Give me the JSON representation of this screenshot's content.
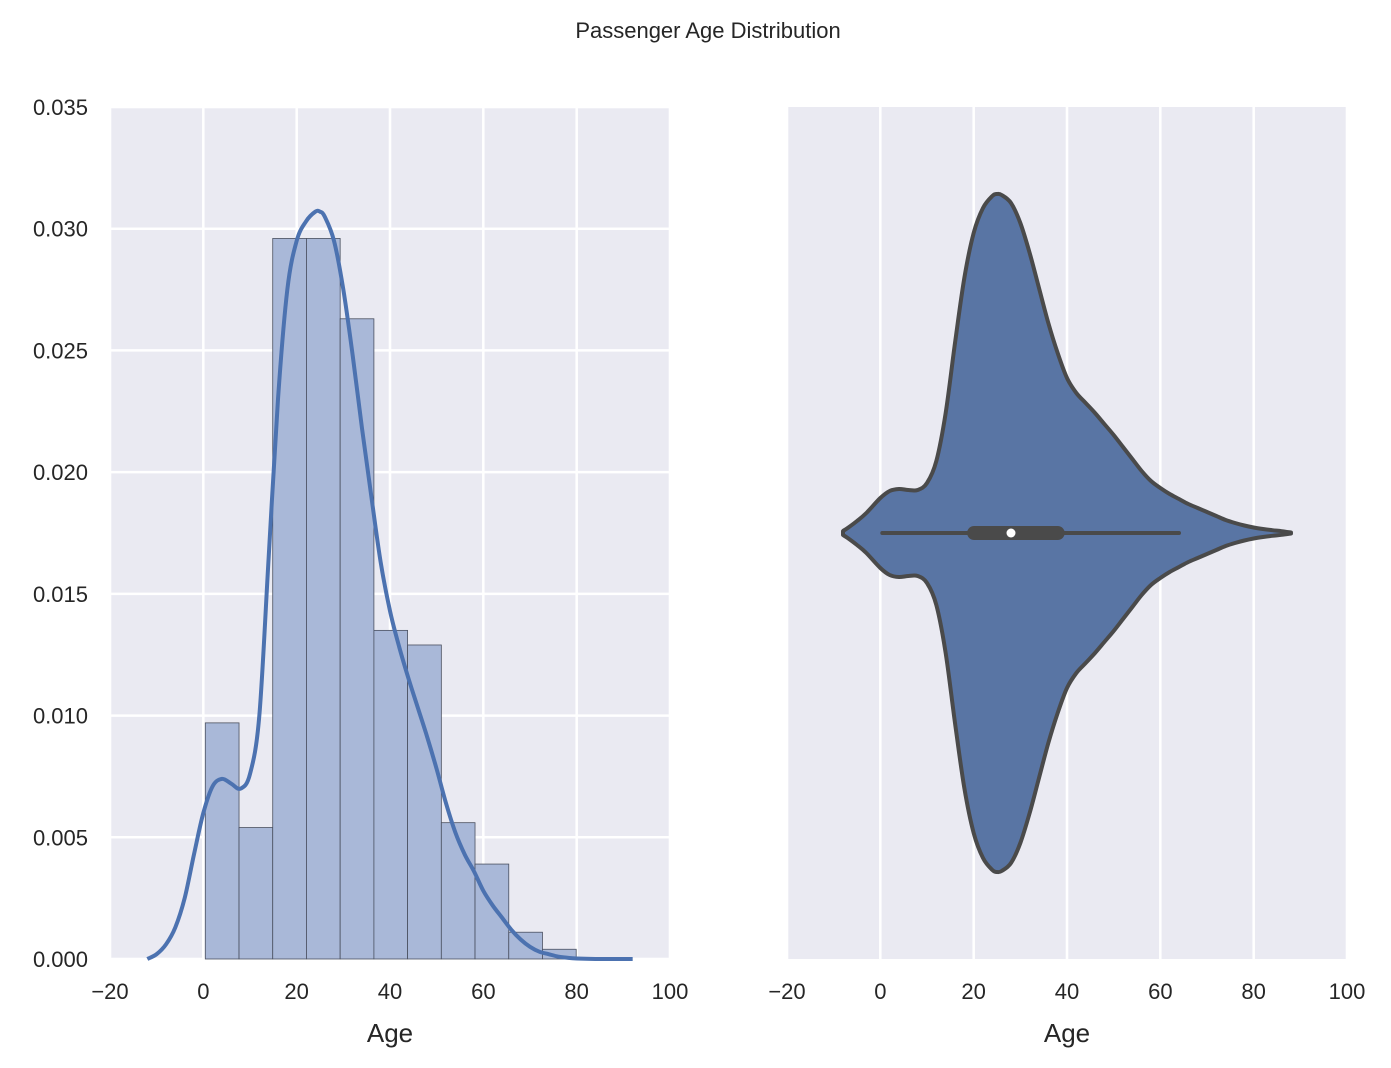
{
  "figure": {
    "title": "Passenger Age Distribution"
  },
  "chart_data": [
    {
      "type": "histogram",
      "xlabel": "Age",
      "ylabel": "",
      "xlim": [
        -20,
        100
      ],
      "ylim": [
        0,
        0.035
      ],
      "xticks": [
        -20,
        0,
        20,
        40,
        60,
        80,
        100
      ],
      "xtick_labels": [
        "−20",
        "0",
        "20",
        "40",
        "60",
        "80",
        "100"
      ],
      "yticks": [
        0,
        0.005,
        0.01,
        0.015,
        0.02,
        0.025,
        0.03,
        0.035
      ],
      "ytick_labels": [
        "0.000",
        "0.005",
        "0.010",
        "0.015",
        "0.020",
        "0.025",
        "0.030",
        "0.035"
      ],
      "grid": true,
      "bins": [
        {
          "x0": 0.42,
          "x1": 7.65,
          "density": 0.0097
        },
        {
          "x0": 7.65,
          "x1": 14.87,
          "density": 0.0054
        },
        {
          "x0": 14.87,
          "x1": 22.1,
          "density": 0.0296
        },
        {
          "x0": 22.1,
          "x1": 29.32,
          "density": 0.0296
        },
        {
          "x0": 29.32,
          "x1": 36.55,
          "density": 0.0263
        },
        {
          "x0": 36.55,
          "x1": 43.77,
          "density": 0.0135
        },
        {
          "x0": 43.77,
          "x1": 51.0,
          "density": 0.0129
        },
        {
          "x0": 51.0,
          "x1": 58.22,
          "density": 0.0056
        },
        {
          "x0": 58.22,
          "x1": 65.45,
          "density": 0.0039
        },
        {
          "x0": 65.45,
          "x1": 72.67,
          "density": 0.0011
        },
        {
          "x0": 72.67,
          "x1": 79.9,
          "density": 0.0004
        }
      ],
      "kde": {
        "x": [
          -12,
          -10,
          -8,
          -6,
          -4,
          -2,
          0,
          2,
          4,
          6,
          8,
          10,
          12,
          14,
          16,
          18,
          20,
          22,
          24,
          25,
          26,
          28,
          30,
          32,
          34,
          36,
          38,
          40,
          42,
          44,
          46,
          48,
          50,
          52,
          54,
          56,
          58,
          60,
          62,
          64,
          66,
          68,
          70,
          72,
          74,
          76,
          78,
          80,
          84,
          88,
          92
        ],
        "y": [
          0.0,
          0.0002,
          0.0006,
          0.0013,
          0.0025,
          0.0043,
          0.006,
          0.0071,
          0.0074,
          0.0072,
          0.007,
          0.0076,
          0.01,
          0.0165,
          0.023,
          0.0275,
          0.0295,
          0.0303,
          0.0307,
          0.0307,
          0.0305,
          0.0295,
          0.0275,
          0.0248,
          0.0218,
          0.019,
          0.0163,
          0.0143,
          0.0128,
          0.0115,
          0.0103,
          0.0091,
          0.0078,
          0.0064,
          0.0052,
          0.0043,
          0.0036,
          0.0028,
          0.0022,
          0.0017,
          0.0012,
          0.0008,
          0.0005,
          0.0003,
          0.0002,
          0.0001,
          5e-05,
          2e-05,
          0.0,
          0.0,
          0.0
        ]
      },
      "colors": {
        "bar_fill": "#a9b8d8",
        "bar_edge": "#4a5060",
        "kde_line": "#4c72b0",
        "background": "#eaeaf2",
        "grid": "#ffffff"
      }
    },
    {
      "type": "violin",
      "xlabel": "Age",
      "xlim": [
        -20,
        100
      ],
      "xticks": [
        -20,
        0,
        20,
        40,
        60,
        80,
        100
      ],
      "xtick_labels": [
        "−20",
        "0",
        "20",
        "40",
        "60",
        "80",
        "100"
      ],
      "grid": true,
      "profile": {
        "x": [
          -8,
          -7,
          -5,
          -3,
          0,
          2,
          4,
          6,
          8,
          10,
          12,
          14,
          16,
          18,
          20,
          22,
          24,
          25,
          26,
          28,
          30,
          32,
          34,
          36,
          38,
          40,
          42,
          44,
          46,
          48,
          50,
          52,
          54,
          56,
          58,
          60,
          62,
          64,
          66,
          68,
          70,
          72,
          74,
          76,
          78,
          80,
          82,
          84,
          86,
          88
        ],
        "halfwidth": [
          0.02,
          0.05,
          0.12,
          0.2,
          0.35,
          0.42,
          0.44,
          0.43,
          0.43,
          0.5,
          0.72,
          1.2,
          1.9,
          2.55,
          3.0,
          3.25,
          3.37,
          3.39,
          3.38,
          3.3,
          3.1,
          2.8,
          2.45,
          2.1,
          1.8,
          1.55,
          1.4,
          1.3,
          1.2,
          1.09,
          0.98,
          0.86,
          0.74,
          0.62,
          0.52,
          0.45,
          0.39,
          0.34,
          0.29,
          0.25,
          0.21,
          0.17,
          0.13,
          0.1,
          0.075,
          0.055,
          0.04,
          0.028,
          0.018,
          0.005
        ]
      },
      "box": {
        "whisker_low": 0.42,
        "q1": 20.1,
        "median": 28.0,
        "q3": 38.0,
        "whisker_high": 64.0
      },
      "colors": {
        "fill": "#5975a4",
        "edge": "#4a4a4a",
        "median_dot": "#ffffff",
        "background": "#eaeaf2",
        "grid": "#ffffff"
      }
    }
  ]
}
